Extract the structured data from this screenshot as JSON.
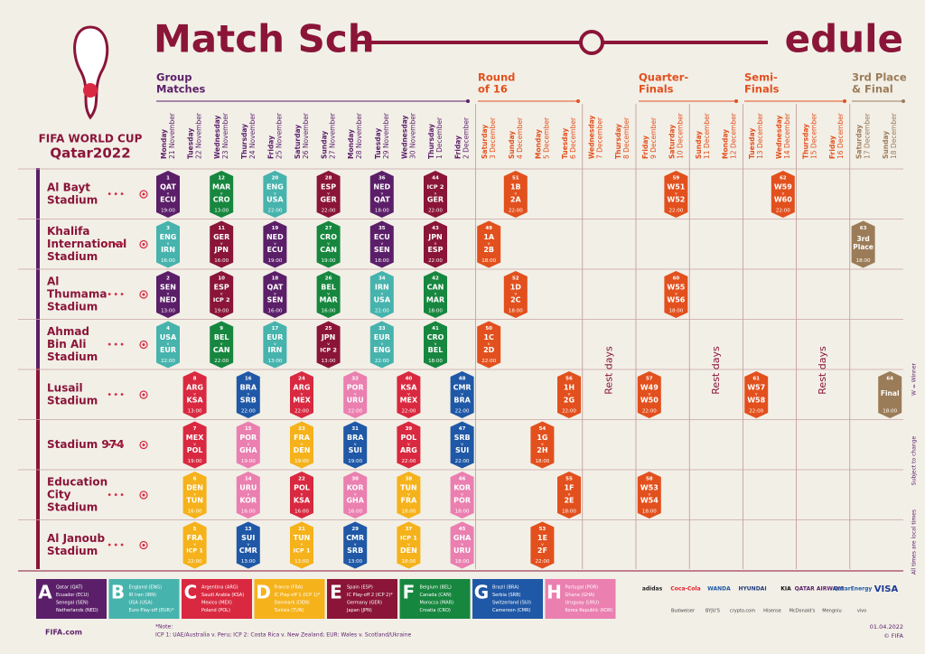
{
  "header": {
    "title_parts": [
      "Match Sch",
      "edule"
    ],
    "logo_top": "FIFA WORLD CUP",
    "logo_bottom": "Qatar2022"
  },
  "stages": [
    {
      "lines": [
        "Group",
        "Matches"
      ],
      "color": "#5b1f69"
    },
    {
      "lines": [
        "Round",
        "of 16"
      ],
      "color": "#e2501d"
    },
    {
      "lines": [
        "Quarter-",
        "Finals"
      ],
      "color": "#e2501d"
    },
    {
      "lines": [
        "Semi-",
        "Finals"
      ],
      "color": "#e2501d"
    },
    {
      "lines": [
        "3rd Place",
        "& Final"
      ],
      "color": "#9b7c58"
    }
  ],
  "days": [
    {
      "weekday": "Monday",
      "date": "21 November"
    },
    {
      "weekday": "Tuesday",
      "date": "22 November"
    },
    {
      "weekday": "Wednesday",
      "date": "23 November"
    },
    {
      "weekday": "Thursday",
      "date": "24 November"
    },
    {
      "weekday": "Friday",
      "date": "25 November"
    },
    {
      "weekday": "Saturday",
      "date": "26 November"
    },
    {
      "weekday": "Sunday",
      "date": "27 November"
    },
    {
      "weekday": "Monday",
      "date": "28 November"
    },
    {
      "weekday": "Tuesday",
      "date": "29 November"
    },
    {
      "weekday": "Wednesday",
      "date": "30 November"
    },
    {
      "weekday": "Thursday",
      "date": "1 December"
    },
    {
      "weekday": "Friday",
      "date": "2 December"
    },
    {
      "weekday": "Saturday",
      "date": "3 December"
    },
    {
      "weekday": "Sunday",
      "date": "4 December"
    },
    {
      "weekday": "Monday",
      "date": "5 December"
    },
    {
      "weekday": "Tuesday",
      "date": "6 December"
    },
    {
      "weekday": "Wednesday",
      "date": "7 December"
    },
    {
      "weekday": "Thursday",
      "date": "8 December"
    },
    {
      "weekday": "Friday",
      "date": "9 December"
    },
    {
      "weekday": "Saturday",
      "date": "10 December"
    },
    {
      "weekday": "Sunday",
      "date": "11 December"
    },
    {
      "weekday": "Monday",
      "date": "12 December"
    },
    {
      "weekday": "Tuesday",
      "date": "13 December"
    },
    {
      "weekday": "Wednesday",
      "date": "14 December"
    },
    {
      "weekday": "Thursday",
      "date": "15 December"
    },
    {
      "weekday": "Friday",
      "date": "16 December"
    },
    {
      "weekday": "Saturday",
      "date": "17 December"
    },
    {
      "weekday": "Sunday",
      "date": "18 December"
    }
  ],
  "rest_days": [
    "Rest days",
    "Rest days",
    "Rest days"
  ],
  "versus": "v",
  "venues": [
    {
      "lines": [
        "Al Bayt",
        "Stadium"
      ],
      "matches": [
        {
          "no": 1,
          "teams": [
            "QAT",
            "ECU"
          ],
          "time": "19:00",
          "date": "21 November",
          "color": "#5b1f69"
        },
        {
          "no": 12,
          "teams": [
            "MAR",
            "CRO"
          ],
          "time": "13:00",
          "date": "23 November",
          "color": "#17873f"
        },
        {
          "no": 20,
          "teams": [
            "ENG",
            "USA"
          ],
          "time": "22:00",
          "date": "25 November",
          "color": "#47b3ad"
        },
        {
          "no": 28,
          "teams": [
            "ESP",
            "GER"
          ],
          "time": "22:00",
          "date": "27 November",
          "color": "#8a1538"
        },
        {
          "no": 36,
          "teams": [
            "NED",
            "QAT"
          ],
          "time": "18:00",
          "date": "29 November",
          "color": "#5b1f69"
        },
        {
          "no": 44,
          "teams": [
            "ICP 2",
            "GER"
          ],
          "time": "22:00",
          "date": "1 December",
          "color": "#8a1538"
        },
        {
          "no": 51,
          "teams": [
            "1B",
            "2A"
          ],
          "time": "22:00",
          "date": "4 December",
          "color": "#e2501d"
        },
        {
          "no": 59,
          "teams": [
            "W51",
            "W52"
          ],
          "time": "22:00",
          "date": "10 December",
          "color": "#e2501d"
        },
        {
          "no": 62,
          "teams": [
            "W59",
            "W60"
          ],
          "time": "22:00",
          "date": "14 December",
          "color": "#e2501d"
        }
      ]
    },
    {
      "lines": [
        "Khalifa",
        "International",
        "Stadium"
      ],
      "matches": [
        {
          "no": 3,
          "teams": [
            "ENG",
            "IRN"
          ],
          "time": "16:00",
          "date": "21 November",
          "color": "#47b3ad"
        },
        {
          "no": 11,
          "teams": [
            "GER",
            "JPN"
          ],
          "time": "16:00",
          "date": "23 November",
          "color": "#8a1538"
        },
        {
          "no": 19,
          "teams": [
            "NED",
            "ECU"
          ],
          "time": "19:00",
          "date": "25 November",
          "color": "#5b1f69"
        },
        {
          "no": 27,
          "teams": [
            "CRO",
            "CAN"
          ],
          "time": "19:00",
          "date": "27 November",
          "color": "#17873f"
        },
        {
          "no": 35,
          "teams": [
            "ECU",
            "SEN"
          ],
          "time": "18:00",
          "date": "29 November",
          "color": "#5b1f69"
        },
        {
          "no": 43,
          "teams": [
            "JPN",
            "ESP"
          ],
          "time": "22:00",
          "date": "1 December",
          "color": "#8a1538"
        },
        {
          "no": 49,
          "teams": [
            "1A",
            "2B"
          ],
          "time": "18:00",
          "date": "3 December",
          "color": "#e2501d"
        },
        {
          "no": 63,
          "label": [
            "3rd",
            "Place"
          ],
          "time": "18:00",
          "date": "17 December",
          "color": "#9b7c58"
        }
      ]
    },
    {
      "lines": [
        "Al",
        "Thumama",
        "Stadium"
      ],
      "matches": [
        {
          "no": 2,
          "teams": [
            "SEN",
            "NED"
          ],
          "time": "13:00",
          "date": "21 November",
          "color": "#5b1f69"
        },
        {
          "no": 10,
          "teams": [
            "ESP",
            "ICP 2"
          ],
          "time": "19:00",
          "date": "23 November",
          "color": "#8a1538"
        },
        {
          "no": 18,
          "teams": [
            "QAT",
            "SEN"
          ],
          "time": "16:00",
          "date": "25 November",
          "color": "#5b1f69"
        },
        {
          "no": 26,
          "teams": [
            "BEL",
            "MAR"
          ],
          "time": "16:00",
          "date": "27 November",
          "color": "#17873f"
        },
        {
          "no": 34,
          "teams": [
            "IRN",
            "USA"
          ],
          "time": "22:00",
          "date": "29 November",
          "color": "#47b3ad"
        },
        {
          "no": 42,
          "teams": [
            "CAN",
            "MAR"
          ],
          "time": "18:00",
          "date": "1 December",
          "color": "#17873f"
        },
        {
          "no": 52,
          "teams": [
            "1D",
            "2C"
          ],
          "time": "18:00",
          "date": "4 December",
          "color": "#e2501d"
        },
        {
          "no": 60,
          "teams": [
            "W55",
            "W56"
          ],
          "time": "18:00",
          "date": "10 December",
          "color": "#e2501d"
        }
      ]
    },
    {
      "lines": [
        "Ahmad",
        "Bin Ali",
        "Stadium"
      ],
      "matches": [
        {
          "no": 4,
          "teams": [
            "USA",
            "EUR"
          ],
          "time": "22:00",
          "date": "21 November",
          "color": "#47b3ad"
        },
        {
          "no": 9,
          "teams": [
            "BEL",
            "CAN"
          ],
          "time": "22:00",
          "date": "23 November",
          "color": "#17873f"
        },
        {
          "no": 17,
          "teams": [
            "EUR",
            "IRN"
          ],
          "time": "13:00",
          "date": "25 November",
          "color": "#47b3ad"
        },
        {
          "no": 25,
          "teams": [
            "JPN",
            "ICP 2"
          ],
          "time": "13:00",
          "date": "27 November",
          "color": "#8a1538"
        },
        {
          "no": 33,
          "teams": [
            "EUR",
            "ENG"
          ],
          "time": "22:00",
          "date": "29 November",
          "color": "#47b3ad"
        },
        {
          "no": 41,
          "teams": [
            "CRO",
            "BEL"
          ],
          "time": "18:00",
          "date": "1 December",
          "color": "#17873f"
        },
        {
          "no": 50,
          "teams": [
            "1C",
            "2D"
          ],
          "time": "22:00",
          "date": "3 December",
          "color": "#e2501d"
        }
      ]
    },
    {
      "lines": [
        "Lusail",
        "Stadium"
      ],
      "matches": [
        {
          "no": 8,
          "teams": [
            "ARG",
            "KSA"
          ],
          "time": "13:00",
          "date": "22 November",
          "color": "#d92940"
        },
        {
          "no": 16,
          "teams": [
            "BRA",
            "SRB"
          ],
          "time": "22:00",
          "date": "24 November",
          "color": "#1f58a6"
        },
        {
          "no": 24,
          "teams": [
            "ARG",
            "MEX"
          ],
          "time": "22:00",
          "date": "26 November",
          "color": "#d92940"
        },
        {
          "no": 32,
          "teams": [
            "POR",
            "URU"
          ],
          "time": "22:00",
          "date": "28 November",
          "color": "#ea7fb0"
        },
        {
          "no": 40,
          "teams": [
            "KSA",
            "MEX"
          ],
          "time": "22:00",
          "date": "30 November",
          "color": "#d92940"
        },
        {
          "no": 48,
          "teams": [
            "CMR",
            "BRA"
          ],
          "time": "22:00",
          "date": "2 December",
          "color": "#1f58a6"
        },
        {
          "no": 56,
          "teams": [
            "1H",
            "2G"
          ],
          "time": "22:00",
          "date": "6 December",
          "color": "#e2501d"
        },
        {
          "no": 57,
          "teams": [
            "W49",
            "W50"
          ],
          "time": "22:00",
          "date": "9 December",
          "color": "#e2501d"
        },
        {
          "no": 61,
          "teams": [
            "W57",
            "W58"
          ],
          "time": "22:00",
          "date": "13 December",
          "color": "#e2501d"
        },
        {
          "no": 64,
          "label": [
            "Final"
          ],
          "time": "18:00",
          "date": "18 December",
          "color": "#9b7c58"
        }
      ]
    },
    {
      "lines": [
        "Stadium 974"
      ],
      "matches": [
        {
          "no": 7,
          "teams": [
            "MEX",
            "POL"
          ],
          "time": "19:00",
          "date": "22 November",
          "color": "#d92940"
        },
        {
          "no": 15,
          "teams": [
            "POR",
            "GHA"
          ],
          "time": "19:00",
          "date": "24 November",
          "color": "#ea7fb0"
        },
        {
          "no": 23,
          "teams": [
            "FRA",
            "DEN"
          ],
          "time": "19:00",
          "date": "26 November",
          "color": "#f5b21b"
        },
        {
          "no": 31,
          "teams": [
            "BRA",
            "SUI"
          ],
          "time": "19:00",
          "date": "28 November",
          "color": "#1f58a6"
        },
        {
          "no": 39,
          "teams": [
            "POL",
            "ARG"
          ],
          "time": "22:00",
          "date": "30 November",
          "color": "#d92940"
        },
        {
          "no": 47,
          "teams": [
            "SRB",
            "SUI"
          ],
          "time": "22:00",
          "date": "2 December",
          "color": "#1f58a6"
        },
        {
          "no": 54,
          "teams": [
            "1G",
            "2H"
          ],
          "time": "18:00",
          "date": "5 December",
          "color": "#e2501d"
        }
      ]
    },
    {
      "lines": [
        "Education",
        "City",
        "Stadium"
      ],
      "matches": [
        {
          "no": 6,
          "teams": [
            "DEN",
            "TUN"
          ],
          "time": "16:00",
          "date": "22 November",
          "color": "#f5b21b"
        },
        {
          "no": 14,
          "teams": [
            "URU",
            "KOR"
          ],
          "time": "16:00",
          "date": "24 November",
          "color": "#ea7fb0"
        },
        {
          "no": 22,
          "teams": [
            "POL",
            "KSA"
          ],
          "time": "16:00",
          "date": "26 November",
          "color": "#d92940"
        },
        {
          "no": 30,
          "teams": [
            "KOR",
            "GHA"
          ],
          "time": "16:00",
          "date": "28 November",
          "color": "#ea7fb0"
        },
        {
          "no": 38,
          "teams": [
            "TUN",
            "FRA"
          ],
          "time": "18:00",
          "date": "30 November",
          "color": "#f5b21b"
        },
        {
          "no": 46,
          "teams": [
            "KOR",
            "POR"
          ],
          "time": "18:00",
          "date": "2 December",
          "color": "#ea7fb0"
        },
        {
          "no": 55,
          "teams": [
            "1F",
            "2E"
          ],
          "time": "18:00",
          "date": "6 December",
          "color": "#e2501d"
        },
        {
          "no": 58,
          "teams": [
            "W53",
            "W54"
          ],
          "time": "18:00",
          "date": "9 December",
          "color": "#e2501d"
        }
      ]
    },
    {
      "lines": [
        "Al Janoub",
        "Stadium"
      ],
      "matches": [
        {
          "no": 5,
          "teams": [
            "FRA",
            "ICP 1"
          ],
          "time": "22:00",
          "date": "22 November",
          "color": "#f5b21b"
        },
        {
          "no": 13,
          "teams": [
            "SUI",
            "CMR"
          ],
          "time": "13:00",
          "date": "24 November",
          "color": "#1f58a6"
        },
        {
          "no": 21,
          "teams": [
            "TUN",
            "ICP 1"
          ],
          "time": "13:00",
          "date": "26 November",
          "color": "#f5b21b"
        },
        {
          "no": 29,
          "teams": [
            "CMR",
            "SRB"
          ],
          "time": "13:00",
          "date": "28 November",
          "color": "#1f58a6"
        },
        {
          "no": 37,
          "teams": [
            "ICP 1",
            "DEN"
          ],
          "time": "18:00",
          "date": "30 November",
          "color": "#f5b21b"
        },
        {
          "no": 45,
          "teams": [
            "GHA",
            "URU"
          ],
          "time": "18:00",
          "date": "2 December",
          "color": "#ea7fb0"
        },
        {
          "no": 53,
          "teams": [
            "1E",
            "2F"
          ],
          "time": "22:00",
          "date": "5 December",
          "color": "#e2501d"
        }
      ]
    }
  ],
  "groups": [
    {
      "letter": "A",
      "color": "#5b1f69",
      "teams": [
        "Qatar (QAT)",
        "Ecuador (ECU)",
        "Senegal (SEN)",
        "Netherlands (NED)"
      ]
    },
    {
      "letter": "B",
      "color": "#47b3ad",
      "teams": [
        "England (ENG)",
        "IR Iran (IRN)",
        "USA (USA)",
        "Euro Play-off (EUR)*"
      ]
    },
    {
      "letter": "C",
      "color": "#d92940",
      "teams": [
        "Argentina (ARG)",
        "Saudi Arabia (KSA)",
        "Mexico (MEX)",
        "Poland (POL)"
      ]
    },
    {
      "letter": "D",
      "color": "#f5b21b",
      "teams": [
        "France (FRA)",
        "IC Play-off 1 (ICP 1)*",
        "Denmark (DEN)",
        "Tunisia (TUN)"
      ]
    },
    {
      "letter": "E",
      "color": "#8a1538",
      "teams": [
        "Spain (ESP)",
        "IC Play-off 2 (ICP 2)*",
        "Germany (GER)",
        "Japan (JPN)"
      ]
    },
    {
      "letter": "F",
      "color": "#17873f",
      "teams": [
        "Belgium (BEL)",
        "Canada (CAN)",
        "Morocco (MAR)",
        "Croatia (CRO)"
      ]
    },
    {
      "letter": "G",
      "color": "#1f58a6",
      "teams": [
        "Brazil (BRA)",
        "Serbia (SRB)",
        "Switzerland (SUI)",
        "Cameroon (CMR)"
      ]
    },
    {
      "letter": "H",
      "color": "#ea7fb0",
      "teams": [
        "Portugal (POR)",
        "Ghana (GHA)",
        "Uruguay (URU)",
        "Korea Republic (KOR)"
      ]
    }
  ],
  "notes": {
    "heading": "*Note:",
    "text": "ICP 1: UAE/Australia v. Peru; ICP 2: Costa Rica v. New Zealand; EUR: Wales v. Scotland/Ukraine"
  },
  "side_notes": [
    "W = Winner",
    "Subject to change",
    "All times are local times"
  ],
  "sponsors_top": [
    "adidas",
    "Coca-Cola",
    "WANDA",
    "HYUNDAI",
    "KIA",
    "QATAR AIRWAYS",
    "QatarEnergy",
    "VISA"
  ],
  "sponsors_bottom": [
    "Budweiser",
    "BYJU'S",
    "crypto.com",
    "Hisense",
    "McDonald's",
    "Mengniu",
    "vivo"
  ],
  "footer": {
    "site": "FIFA.com",
    "date": "01.04.2022",
    "copyright": "© FIFA"
  }
}
